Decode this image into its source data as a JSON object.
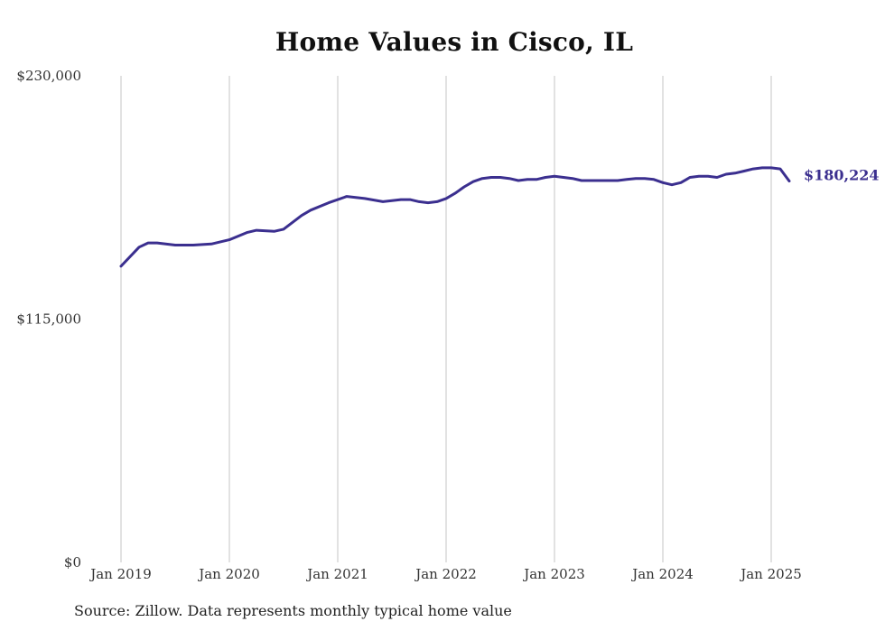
{
  "chart_data": {
    "type": "line",
    "title": "Home Values in Cisco, IL",
    "xlabel": "",
    "ylabel": "",
    "ylim": [
      0,
      230000
    ],
    "y_ticks": [
      {
        "value": 0,
        "label": "$0"
      },
      {
        "value": 115000,
        "label": "$115,000"
      },
      {
        "value": 230000,
        "label": "$230,000"
      }
    ],
    "x_ticks": [
      {
        "value": "2019-01",
        "label": "Jan 2019"
      },
      {
        "value": "2020-01",
        "label": "Jan 2020"
      },
      {
        "value": "2021-01",
        "label": "Jan 2021"
      },
      {
        "value": "2022-01",
        "label": "Jan 2022"
      },
      {
        "value": "2023-01",
        "label": "Jan 2023"
      },
      {
        "value": "2024-01",
        "label": "Jan 2024"
      },
      {
        "value": "2025-01",
        "label": "Jan 2025"
      }
    ],
    "grid": {
      "vertical": true,
      "horizontal": false
    },
    "series": [
      {
        "color": "#3b2f8f",
        "end_label": "$180,224",
        "x": [
          "2019-01",
          "2019-03",
          "2019-04",
          "2019-05",
          "2019-07",
          "2019-09",
          "2019-11",
          "2020-01",
          "2020-03",
          "2020-04",
          "2020-06",
          "2020-07",
          "2020-09",
          "2020-10",
          "2020-12",
          "2021-02",
          "2021-04",
          "2021-06",
          "2021-07",
          "2021-08",
          "2021-09",
          "2021-10",
          "2021-11",
          "2021-12",
          "2022-01",
          "2022-02",
          "2022-03",
          "2022-04",
          "2022-05",
          "2022-06",
          "2022-07",
          "2022-08",
          "2022-09",
          "2022-10",
          "2022-11",
          "2022-12",
          "2023-01",
          "2023-02",
          "2023-03",
          "2023-04",
          "2023-05",
          "2023-06",
          "2023-07",
          "2023-08",
          "2023-09",
          "2023-10",
          "2023-11",
          "2023-12",
          "2024-01",
          "2024-02",
          "2024-03",
          "2024-04",
          "2024-05",
          "2024-06",
          "2024-07",
          "2024-08",
          "2024-09",
          "2024-10",
          "2024-11",
          "2024-12",
          "2025-01",
          "2025-02",
          "2025-03"
        ],
        "values": [
          140000,
          149000,
          151000,
          151000,
          150000,
          150000,
          150500,
          152500,
          156000,
          157000,
          156500,
          157500,
          164000,
          166500,
          170000,
          173000,
          172000,
          170500,
          171000,
          171500,
          171500,
          170500,
          170000,
          170500,
          172000,
          174500,
          177500,
          180000,
          181500,
          182000,
          182000,
          181500,
          180500,
          181000,
          181000,
          182000,
          182500,
          182000,
          181500,
          180500,
          180500,
          180500,
          180500,
          180500,
          181000,
          181500,
          181500,
          181000,
          179500,
          178500,
          179500,
          182000,
          182500,
          182500,
          182000,
          183500,
          184000,
          185000,
          186000,
          186500,
          186500,
          186000,
          180224
        ]
      }
    ],
    "source_note": "Source: Zillow. Data represents monthly typical home value"
  }
}
